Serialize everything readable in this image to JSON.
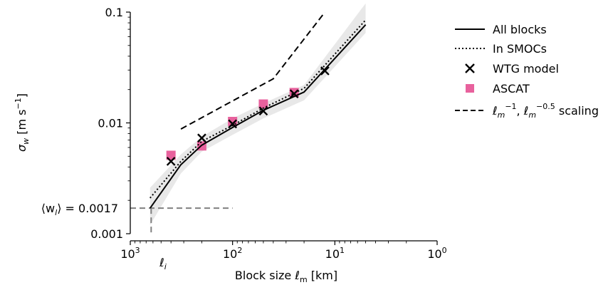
{
  "chart_data": {
    "type": "line",
    "xscale": "log-reversed",
    "yscale": "log",
    "xlabel": "Block size ℓ",
    "xlabel_sub": "m",
    "xlabel_unit": " [km]",
    "ylabel_parts": {
      "sigma": "σ",
      "sub": "w",
      "unit_pre": " [m s",
      "sup": "−1",
      "unit_post": "]"
    },
    "xlim": [
      1000,
      1
    ],
    "ylim": [
      0.001,
      0.1
    ],
    "x_ticks": [
      {
        "value": 1000,
        "base": "10",
        "exp": "3"
      },
      {
        "value": 100,
        "base": "10",
        "exp": "2"
      },
      {
        "value": 10,
        "base": "10",
        "exp": "1"
      },
      {
        "value": 1,
        "base": "10",
        "exp": "0"
      }
    ],
    "y_ticks": [
      {
        "value": 0.1,
        "label": "0.1"
      },
      {
        "value": 0.01,
        "label": "0.01"
      },
      {
        "value": 0.001,
        "label": "0.001"
      }
    ],
    "annotations": {
      "w_mean_label": "⟨w",
      "w_mean_sub": "l",
      "w_mean_rest": "⟩ = 0.0017",
      "w_mean_value": 0.0017,
      "w_mean_x_extent": [
        1000,
        100
      ],
      "l_i_symbol": "ℓ",
      "l_i_sub": "i",
      "l_i_value": 625
    },
    "band": {
      "x": [
        640,
        320,
        200,
        100,
        50,
        20,
        5
      ],
      "lower": [
        0.0012,
        0.0035,
        0.0055,
        0.0078,
        0.011,
        0.016,
        0.065
      ],
      "upper": [
        0.0026,
        0.0052,
        0.0075,
        0.011,
        0.015,
        0.022,
        0.12
      ]
    },
    "series": [
      {
        "name": "All blocks",
        "style": "solid",
        "x": [
          640,
          320,
          200,
          100,
          50,
          20,
          5
        ],
        "y": [
          0.0017,
          0.0042,
          0.0063,
          0.0091,
          0.013,
          0.019,
          0.077
        ]
      },
      {
        "name": "In SMOCs",
        "style": "dotted",
        "x": [
          640,
          320,
          200,
          100,
          50,
          20,
          5
        ],
        "y": [
          0.0021,
          0.0045,
          0.0068,
          0.0095,
          0.0136,
          0.0205,
          0.085
        ]
      },
      {
        "name": "WTG model",
        "style": "x-marker",
        "x": [
          400,
          200,
          100,
          50,
          25,
          12.5
        ],
        "y": [
          0.0045,
          0.0073,
          0.0098,
          0.0128,
          0.0183,
          0.0295
        ]
      },
      {
        "name": "ASCAT",
        "style": "square-marker",
        "x": [
          400,
          200,
          100,
          50,
          25
        ],
        "y": [
          0.0051,
          0.0062,
          0.0103,
          0.0148,
          0.0188
        ]
      },
      {
        "name_parts": [
          "ℓ",
          "m",
          "−1",
          ", ℓ",
          "m",
          "−0.5",
          " scaling"
        ],
        "style": "dashed",
        "x": [
          320,
          40,
          12.5
        ],
        "y": [
          0.0088,
          0.025,
          0.1
        ]
      }
    ],
    "colors": {
      "ascat": "#e8619d",
      "band": "#e8e8e8",
      "line": "#000000",
      "ref_dashed": "#808080"
    }
  }
}
